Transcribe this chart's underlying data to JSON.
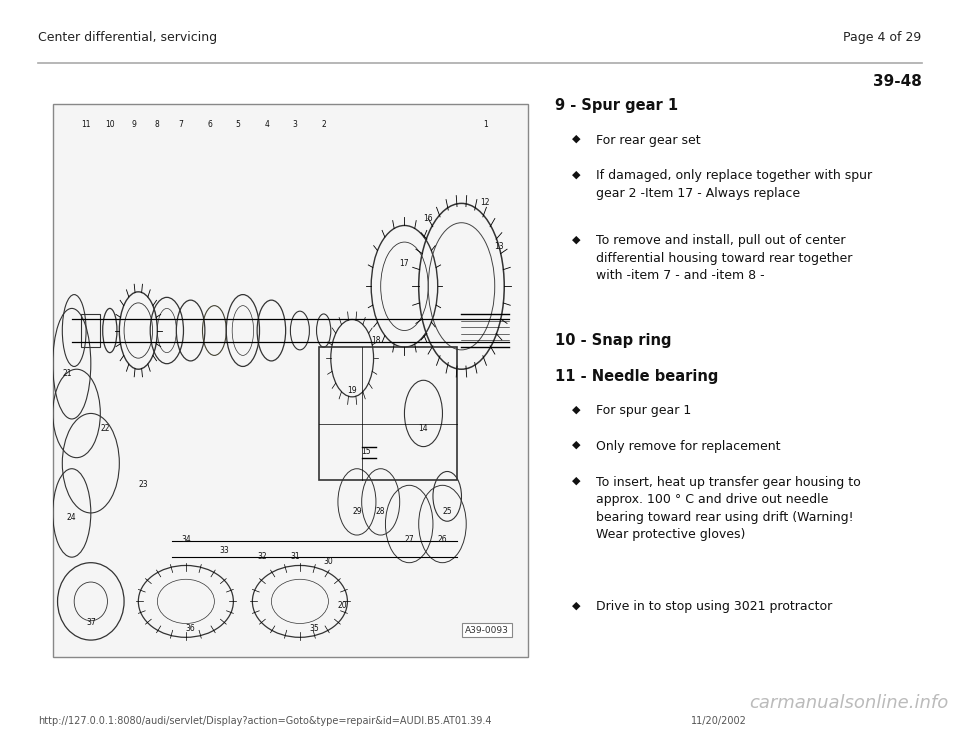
{
  "bg_color": "#ffffff",
  "header_left": "Center differential, servicing",
  "header_right": "Page 4 of 29",
  "section_number": "39-48",
  "footer_left": "http://127.0.0.1:8080/audi/servlet/Display?action=Goto&type=repair&id=AUDI.B5.AT01.39.4",
  "footer_right": "11/20/2002",
  "footer_brand": "carmanualsonline.info",
  "items": [
    {
      "heading": "9 - Spur gear 1",
      "bullets": [
        "For rear gear set",
        "If damaged, only replace together with spur\ngear 2 -Item 17 - Always replace",
        "To remove and install, pull out of center\ndifferential housing toward rear together\nwith -item 7 - and -item 8 -"
      ]
    },
    {
      "heading": "10 - Snap ring",
      "bullets": []
    },
    {
      "heading": "11 - Needle bearing",
      "bullets": [
        "For spur gear 1",
        "Only remove for replacement",
        "To insert, heat up transfer gear housing to\napprox. 100 ° C and drive out needle\nbearing toward rear using drift (Warning!\nWear protective gloves)",
        "Drive in to stop using 3021 protractor"
      ]
    }
  ],
  "diagram_label": "A39-0093"
}
